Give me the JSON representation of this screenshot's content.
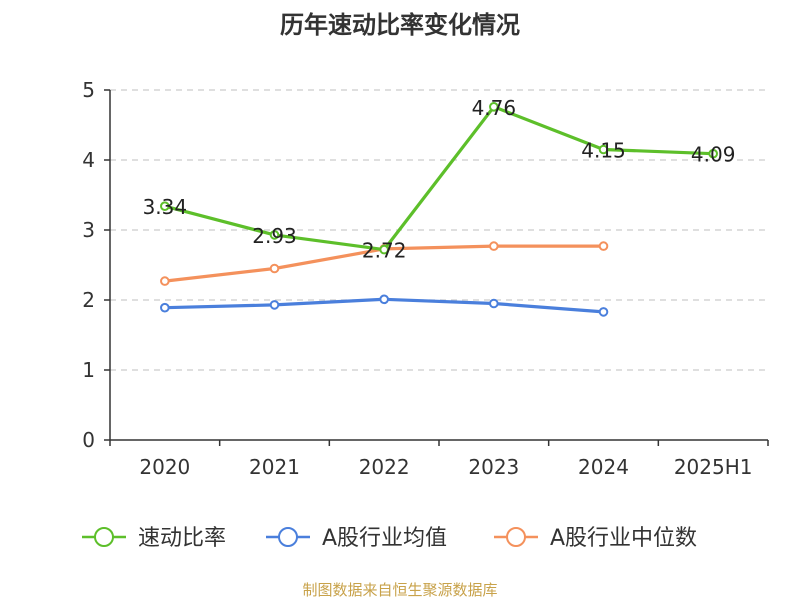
{
  "chart_data": {
    "type": "line",
    "title": "历年速动比率变化情况",
    "categories": [
      "2020",
      "2021",
      "2022",
      "2023",
      "2024",
      "2025H1"
    ],
    "ylim": [
      0,
      5
    ],
    "yticks": [
      "0",
      "1",
      "2",
      "3",
      "4",
      "5"
    ],
    "grid": true,
    "legend_position": "bottom",
    "series": [
      {
        "name": "速动比率",
        "color": "#5dbf2a",
        "values": [
          3.34,
          2.93,
          2.72,
          4.76,
          4.15,
          4.09
        ],
        "labels": [
          "3.34",
          "2.93",
          "2.72",
          "4.76",
          "4.15",
          "4.09"
        ]
      },
      {
        "name": "A股行业均值",
        "color": "#4a7fdc",
        "values": [
          1.89,
          1.93,
          2.01,
          1.95,
          1.83,
          null
        ]
      },
      {
        "name": "A股行业中位数",
        "color": "#f4915c",
        "values": [
          2.27,
          2.45,
          2.73,
          2.77,
          2.77,
          null
        ]
      }
    ]
  },
  "footer": {
    "source": "制图数据来自恒生聚源数据库"
  }
}
